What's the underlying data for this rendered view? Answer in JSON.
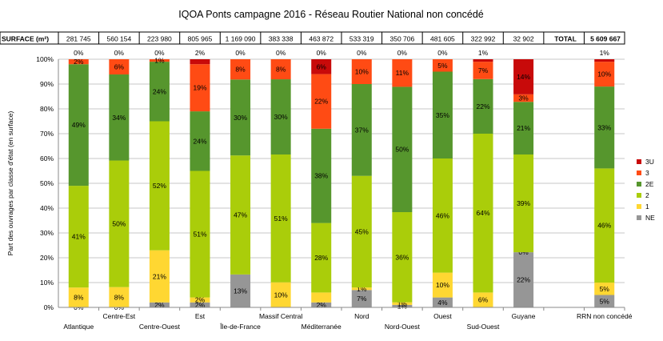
{
  "chart_data": {
    "type": "bar",
    "stacked": true,
    "percent_stacked": true,
    "title": "IQOA Ponts campagne 2016 - Réseau Routier National non concédé",
    "ylabel": "Part des ouvrages par classe d'état (en surface)",
    "xlabel": "",
    "ylim": [
      0,
      100
    ],
    "y_ticks": [
      "0%",
      "10%",
      "20%",
      "30%",
      "40%",
      "50%",
      "60%",
      "70%",
      "80%",
      "90%",
      "100%"
    ],
    "grid": true,
    "legend_position": "right",
    "surface_header": "SURFACE (m²)",
    "total_label": "TOTAL",
    "total_value": "5 609 667",
    "categories": [
      "Atlantique",
      "Centre-Est",
      "Centre-Ouest",
      "Est",
      "Île-de-France",
      "Massif Central",
      "Méditerranée",
      "Nord",
      "Nord-Ouest",
      "Ouest",
      "Sud-Ouest",
      "Guyane",
      "",
      "RRN non concédé"
    ],
    "surfaces": [
      "281 745",
      "560 154",
      "223 980",
      "805 965",
      "1 169 090",
      "383 338",
      "463 872",
      "533 319",
      "350 706",
      "481 605",
      "322 992",
      "32 902",
      "",
      ""
    ],
    "top_labels": [
      "0%",
      "0%",
      "0%",
      "2%",
      "0%",
      "0%",
      "0%",
      "0%",
      "0%",
      "0%",
      "1%",
      "",
      "",
      "1%"
    ],
    "series": [
      {
        "name": "NE",
        "color": "#969696",
        "values": [
          0,
          0,
          2,
          2,
          13,
          0,
          2,
          7,
          1,
          4,
          0,
          22,
          null,
          5
        ],
        "labels": [
          "0%",
          "0%",
          "2%",
          "2%",
          "13%",
          "",
          "2%",
          "7%",
          "1%",
          "4%",
          "",
          "22%",
          "",
          "5%"
        ]
      },
      {
        "name": "1",
        "color": "#ffd732",
        "values": [
          8,
          8,
          21,
          2,
          0,
          10,
          4,
          1,
          1,
          10,
          6,
          0,
          null,
          5
        ],
        "labels": [
          "8%",
          "8%",
          "21%",
          "2%",
          "",
          "10%",
          "",
          "1%",
          "1%",
          "10%",
          "6%",
          "0%",
          "",
          "5%"
        ]
      },
      {
        "name": "2",
        "color": "#aacd0a",
        "values": [
          41,
          50,
          52,
          51,
          47,
          51,
          28,
          45,
          36,
          46,
          64,
          39,
          null,
          46
        ],
        "labels": [
          "41%",
          "50%",
          "52%",
          "51%",
          "47%",
          "51%",
          "28%",
          "45%",
          "36%",
          "46%",
          "64%",
          "39%",
          "",
          "46%"
        ]
      },
      {
        "name": "2E",
        "color": "#56962d",
        "values": [
          49,
          34,
          24,
          24,
          30,
          30,
          38,
          37,
          50,
          35,
          22,
          21,
          null,
          33
        ],
        "labels": [
          "49%",
          "34%",
          "24%",
          "24%",
          "30%",
          "30%",
          "38%",
          "37%",
          "50%",
          "35%",
          "22%",
          "21%",
          "",
          "33%"
        ]
      },
      {
        "name": "3",
        "color": "#ff4b14",
        "values": [
          2,
          6,
          1,
          19,
          8,
          8,
          22,
          10,
          11,
          5,
          7,
          3,
          null,
          10
        ],
        "labels": [
          "2%",
          "6%",
          "1%",
          "19%",
          "8%",
          "8%",
          "22%",
          "10%",
          "11%",
          "5%",
          "7%",
          "3%",
          "",
          "10%"
        ]
      },
      {
        "name": "3U",
        "color": "#c80a0a",
        "values": [
          0,
          0,
          0,
          2,
          0,
          0,
          6,
          0,
          0,
          0,
          1,
          14,
          null,
          1
        ],
        "labels": [
          "",
          "",
          "",
          "",
          "",
          "",
          "6%",
          "",
          "",
          "",
          "",
          "14%",
          "",
          ""
        ]
      }
    ]
  }
}
